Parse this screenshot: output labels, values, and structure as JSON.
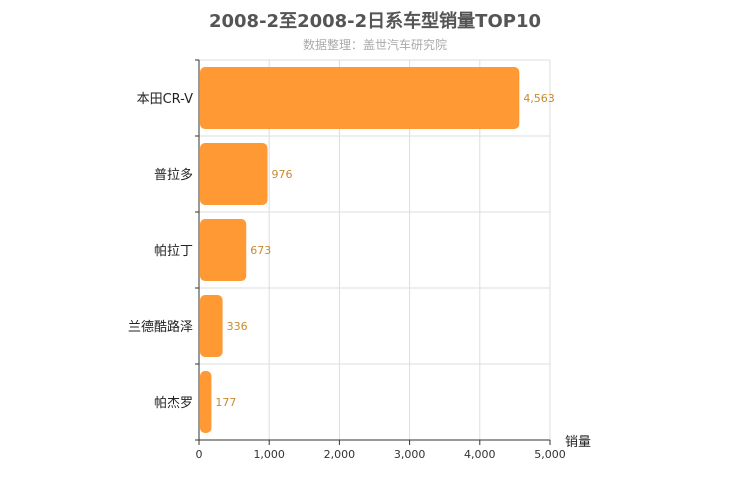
{
  "chart_data": {
    "type": "bar",
    "orientation": "horizontal",
    "title": "2008-2至2008-2日系车型销量TOP10",
    "subtitle": "数据整理：盖世汽车研究院",
    "categories": [
      "本田CR-V",
      "普拉多",
      "帕拉丁",
      "兰德酷路泽",
      "帕杰罗"
    ],
    "values": [
      4563,
      976,
      673,
      336,
      177
    ],
    "value_labels": [
      "4,563",
      "976",
      "673",
      "336",
      "177"
    ],
    "xlabel": "销量",
    "ylabel": "",
    "xlim": [
      0,
      5000
    ],
    "xticks": [
      0,
      1000,
      2000,
      3000,
      4000,
      5000
    ],
    "xtick_labels": [
      "0",
      "1,000",
      "2,000",
      "3,000",
      "4,000",
      "5,000"
    ],
    "grid": true,
    "bar_color": "#ff9933"
  }
}
